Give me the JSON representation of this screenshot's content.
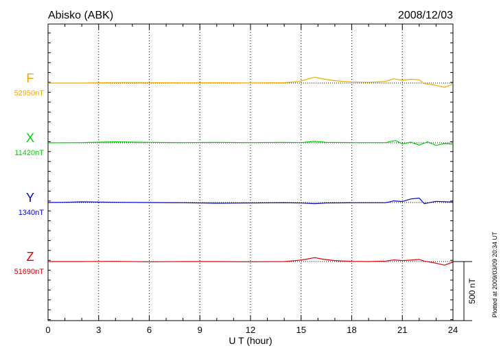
{
  "chart_data": {
    "type": "line",
    "title": "Abisko (ABK)",
    "date": "2008/12/03",
    "xlabel": "U T (hour)",
    "xlim": [
      0,
      24
    ],
    "xticks": [
      "0",
      "3",
      "6",
      "9",
      "12",
      "15",
      "18",
      "21",
      "24"
    ],
    "grid": "vertical dotted",
    "scale_bar_label": "500 nT",
    "scale_bar_nT": 500,
    "footer_note": "Plotted at 2009/03/09 20:34 UT",
    "series": [
      {
        "name": "F",
        "baseline_label": "52950nT",
        "baseline_nT": 52950,
        "color": "#f0a800",
        "points": [
          [
            0,
            0
          ],
          [
            2,
            0
          ],
          [
            4,
            4
          ],
          [
            6,
            4
          ],
          [
            8,
            2
          ],
          [
            10,
            3
          ],
          [
            12,
            1
          ],
          [
            14,
            3
          ],
          [
            14.8,
            12
          ],
          [
            15.3,
            30
          ],
          [
            15.8,
            50
          ],
          [
            16.2,
            38
          ],
          [
            17,
            20
          ],
          [
            18,
            10
          ],
          [
            19,
            6
          ],
          [
            20,
            14
          ],
          [
            20.5,
            36
          ],
          [
            21,
            24
          ],
          [
            21.5,
            32
          ],
          [
            22,
            28
          ],
          [
            22.3,
            -4
          ],
          [
            23,
            -20
          ],
          [
            23.5,
            -36
          ],
          [
            24,
            -10
          ]
        ]
      },
      {
        "name": "X",
        "baseline_label": "11420nT",
        "baseline_nT": 11420,
        "color": "#00d000",
        "points": [
          [
            0,
            0
          ],
          [
            2,
            2
          ],
          [
            4,
            8
          ],
          [
            6,
            4
          ],
          [
            8,
            2
          ],
          [
            10,
            4
          ],
          [
            12,
            2
          ],
          [
            14,
            4
          ],
          [
            15,
            2
          ],
          [
            15.8,
            12
          ],
          [
            16.5,
            4
          ],
          [
            18,
            2
          ],
          [
            20,
            2
          ],
          [
            20.6,
            20
          ],
          [
            21,
            -10
          ],
          [
            21.5,
            6
          ],
          [
            22,
            -20
          ],
          [
            22.5,
            8
          ],
          [
            23,
            -22
          ],
          [
            23.5,
            -6
          ],
          [
            24,
            -12
          ]
        ]
      },
      {
        "name": "Y",
        "baseline_label": "1340nT",
        "baseline_nT": 1340,
        "color": "#0000cc",
        "points": [
          [
            0,
            0
          ],
          [
            1,
            2
          ],
          [
            2,
            6
          ],
          [
            3,
            4
          ],
          [
            4,
            2
          ],
          [
            6,
            0
          ],
          [
            8,
            -2
          ],
          [
            10,
            -6
          ],
          [
            12,
            -4
          ],
          [
            14,
            -2
          ],
          [
            15,
            -4
          ],
          [
            15.8,
            -10
          ],
          [
            16.5,
            -4
          ],
          [
            18,
            -2
          ],
          [
            20,
            -2
          ],
          [
            20.5,
            14
          ],
          [
            21,
            8
          ],
          [
            21.5,
            30
          ],
          [
            22,
            38
          ],
          [
            22.3,
            -10
          ],
          [
            23,
            10
          ],
          [
            24,
            4
          ]
        ]
      },
      {
        "name": "Z",
        "baseline_label": "51690nT",
        "baseline_nT": 51690,
        "color": "#dd0000",
        "points": [
          [
            0,
            0
          ],
          [
            2,
            0
          ],
          [
            4,
            2
          ],
          [
            6,
            -2
          ],
          [
            8,
            0
          ],
          [
            10,
            0
          ],
          [
            12,
            -2
          ],
          [
            14,
            0
          ],
          [
            14.8,
            10
          ],
          [
            15.3,
            20
          ],
          [
            15.8,
            34
          ],
          [
            16.3,
            20
          ],
          [
            17,
            8
          ],
          [
            18,
            2
          ],
          [
            19,
            0
          ],
          [
            20,
            4
          ],
          [
            20.5,
            14
          ],
          [
            21,
            8
          ],
          [
            21.5,
            12
          ],
          [
            22,
            18
          ],
          [
            22.3,
            4
          ],
          [
            23,
            -14
          ],
          [
            23.5,
            -30
          ],
          [
            24,
            -4
          ]
        ]
      }
    ]
  }
}
